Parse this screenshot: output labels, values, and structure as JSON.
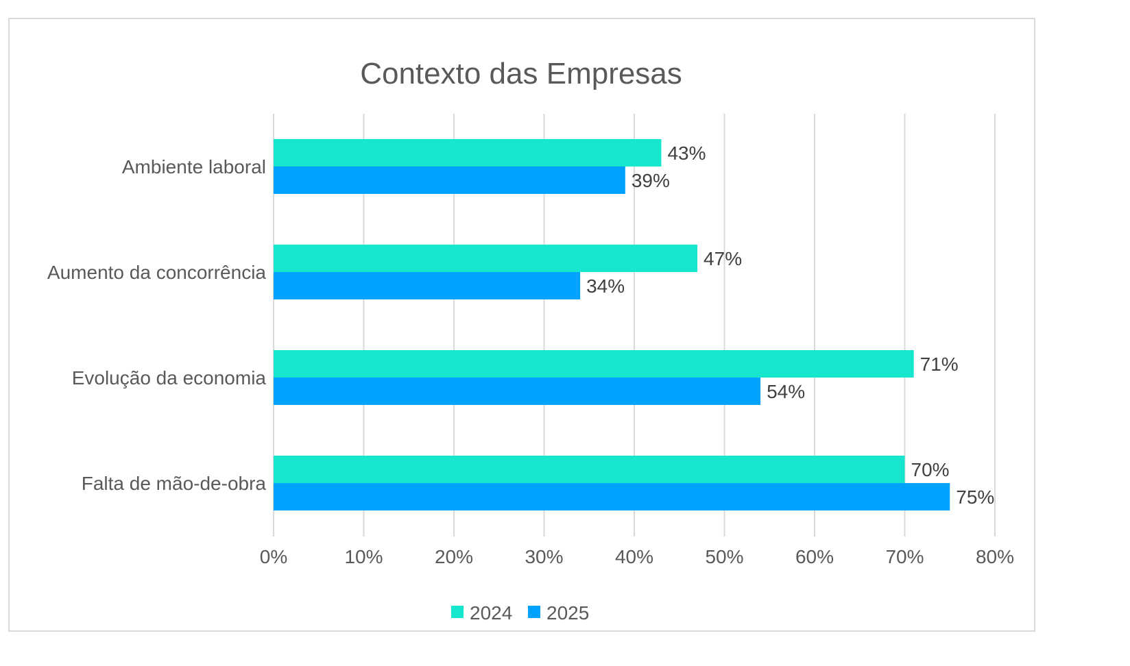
{
  "chart_data": {
    "type": "bar",
    "orientation": "horizontal",
    "title": "Contexto das Empresas",
    "categories": [
      "Ambiente laboral",
      "Aumento da concorrência",
      "Evolução da economia",
      "Falta de mão-de-obra"
    ],
    "series": [
      {
        "name": "2024",
        "color": "#17e6cf",
        "values": [
          43,
          47,
          71,
          70
        ],
        "labels": [
          "43%",
          "47%",
          "71%",
          "70%"
        ]
      },
      {
        "name": "2025",
        "color": "#00a2ff",
        "values": [
          39,
          34,
          54,
          75
        ],
        "labels": [
          "39%",
          "34%",
          "54%",
          "75%"
        ]
      }
    ],
    "xlim": [
      0,
      80
    ],
    "x_ticks": [
      0,
      10,
      20,
      30,
      40,
      50,
      60,
      70,
      80
    ],
    "x_tick_labels": [
      "0%",
      "10%",
      "20%",
      "30%",
      "40%",
      "50%",
      "60%",
      "70%",
      "80%"
    ],
    "xlabel": "",
    "ylabel": "",
    "grid": true,
    "legend_position": "bottom"
  }
}
